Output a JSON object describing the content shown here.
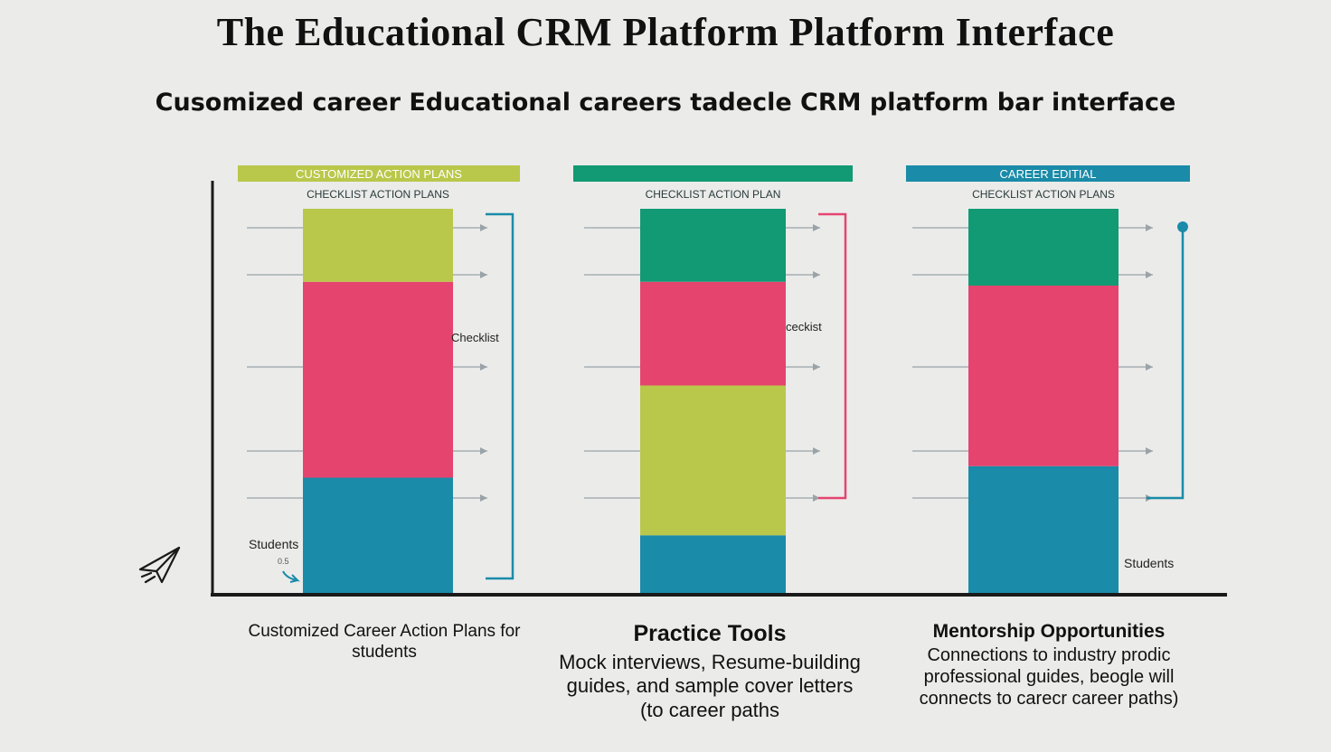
{
  "header": {
    "title": "The Educational CRM Platform Platform Interface",
    "subtitle": "Cusomized career Educational careers tadecle CRM platform bar interface"
  },
  "colors": {
    "lime": "#b9c84a",
    "pink": "#e5446f",
    "teal": "#1a8ba8",
    "green": "#119a74",
    "axis": "#1a1a1a",
    "guide": "#9aa3a8"
  },
  "chart_data": {
    "type": "bar",
    "stacked": true,
    "categories": [
      "Customized Career Action Plans",
      "Practice Tools",
      "Mentorship Opportunities"
    ],
    "ylim": [
      0,
      100
    ],
    "grid": false,
    "columns": [
      {
        "header_label": "CUSTOMIZED ACTION PLANS",
        "header_color": "#b9c84a",
        "sub_label": "CHECKLIST ACTION PLANS",
        "segments": [
          {
            "color": "#1a8ba8",
            "value": 30
          },
          {
            "color": "#e5446f",
            "value": 51
          },
          {
            "color": "#b9c84a",
            "value": 19
          }
        ],
        "bracket_color": "#1a8ba8",
        "side_label": "Checklist",
        "bottom_label": "Students",
        "bottom_note": "0.5"
      },
      {
        "header_label": "",
        "header_color": "#119a74",
        "sub_label": "CHECKLIST ACTION PLAN",
        "segments": [
          {
            "color": "#1a8ba8",
            "value": 15
          },
          {
            "color": "#b9c84a",
            "value": 39
          },
          {
            "color": "#e5446f",
            "value": 27
          },
          {
            "color": "#119a74",
            "value": 19
          }
        ],
        "bracket_color": "#e5446f",
        "side_label": "ceckist",
        "bottom_label": "",
        "bottom_note": ""
      },
      {
        "header_label": "CAREER EDITIAL",
        "header_color": "#1a8ba8",
        "sub_label": "CHECKLIST ACTION PLANS",
        "segments": [
          {
            "color": "#1a8ba8",
            "value": 33
          },
          {
            "color": "#e5446f",
            "value": 47
          },
          {
            "color": "#119a74",
            "value": 20
          }
        ],
        "bracket_color": "#1a8ba8",
        "side_label": "",
        "bottom_label": "Students",
        "bottom_note": ""
      }
    ]
  },
  "captions": [
    {
      "title": "",
      "desc": "Customized Career Action Plans for students"
    },
    {
      "title": "Practice Tools",
      "desc": "Mock interviews, Resume-building guides, and sample cover letters (to career paths"
    },
    {
      "title": "Mentorship Opportunities",
      "desc": "Connections to industry prodic professional guides, beogle will connects to carecr career paths)"
    }
  ],
  "icons": {
    "corner": "paper-plane-icon"
  }
}
